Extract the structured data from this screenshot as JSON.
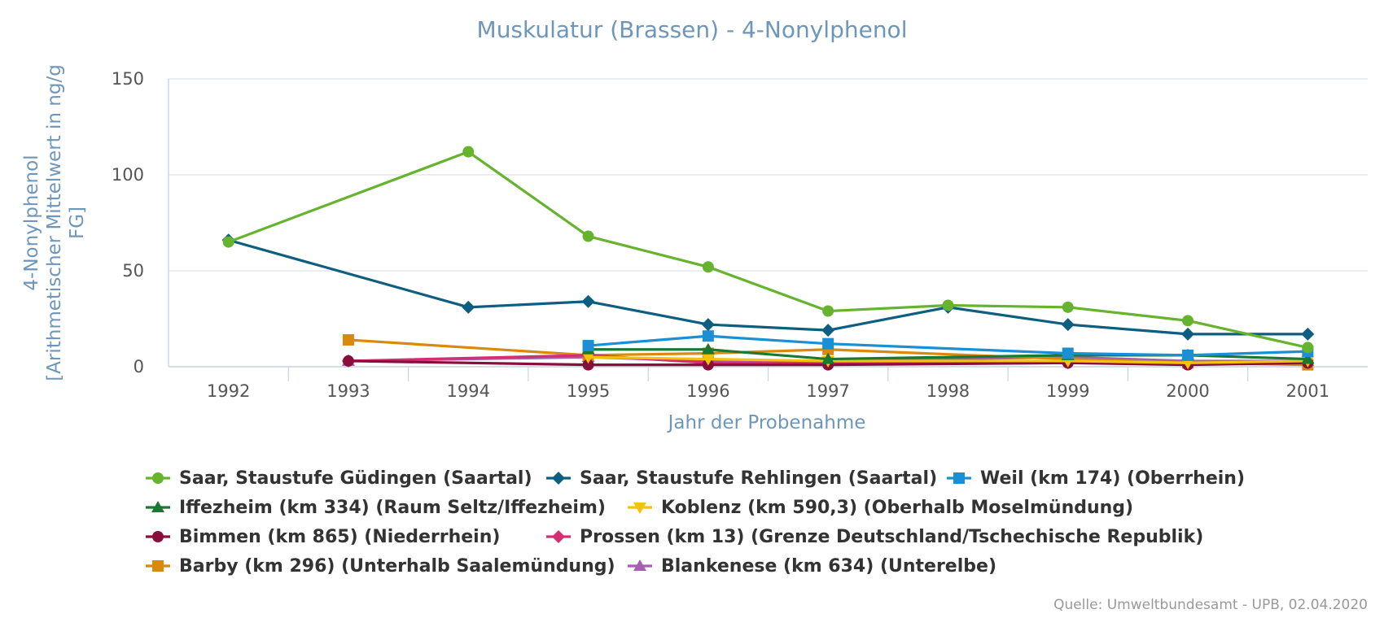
{
  "chart_data": {
    "type": "line",
    "title": "Muskulatur (Brassen) - 4-Nonylphenol",
    "xlabel": "Jahr der Probenahme",
    "ylabel_lines": [
      "4-Nonylphenol",
      "[Arithmetischer Mittelwert in ng/g",
      "FG]"
    ],
    "categories": [
      "1992",
      "1993",
      "1994",
      "1995",
      "1996",
      "1997",
      "1998",
      "1999",
      "2000",
      "2001"
    ],
    "y_ticks": [
      "0",
      "50",
      "100",
      "150"
    ],
    "ylim": [
      0,
      150
    ],
    "grid": true,
    "legend_position": "bottom",
    "series": [
      {
        "name": "Saar, Staustufe Güdingen (Saartal)",
        "color": "#66b32e",
        "marker": "circle",
        "values": [
          65,
          null,
          112,
          68,
          52,
          29,
          32,
          31,
          24,
          10
        ]
      },
      {
        "name": "Saar, Staustufe Rehlingen (Saartal)",
        "color": "#0d5e80",
        "marker": "diamond",
        "values": [
          66,
          null,
          31,
          34,
          22,
          19,
          31,
          22,
          17,
          17
        ]
      },
      {
        "name": "Weil (km 174) (Oberrhein)",
        "color": "#1a8fd6",
        "marker": "square",
        "values": [
          null,
          null,
          null,
          11,
          16,
          12,
          null,
          7,
          6,
          8
        ]
      },
      {
        "name": "Iffezheim (km 334) (Raum Seltz/Iffezheim)",
        "color": "#177a30",
        "marker": "triangle",
        "values": [
          null,
          null,
          null,
          9,
          9,
          4,
          null,
          6,
          6,
          4
        ]
      },
      {
        "name": "Koblenz (km 590,3) (Oberhalb Moselmündung)",
        "color": "#f5c20a",
        "marker": "triangle-down",
        "values": [
          null,
          null,
          null,
          5,
          4,
          3,
          null,
          3,
          2,
          3
        ]
      },
      {
        "name": "Bimmen (km 865) (Niederrhein)",
        "color": "#8a0e3c",
        "marker": "circle",
        "values": [
          null,
          3,
          null,
          1,
          1,
          1,
          null,
          2,
          1,
          2
        ]
      },
      {
        "name": "Prossen (km 13) (Grenze Deutschland/Tschechische Republik)",
        "color": "#d42e73",
        "marker": "diamond",
        "values": [
          null,
          3,
          null,
          6,
          2,
          2,
          null,
          2,
          2,
          2
        ]
      },
      {
        "name": "Barby (km 296) (Unterhalb Saalemündung)",
        "color": "#d98a0d",
        "marker": "square",
        "values": [
          null,
          14,
          null,
          6,
          7,
          9,
          null,
          4,
          2,
          1
        ]
      },
      {
        "name": "Blankenese (km 634) (Unterelbe)",
        "color": "#a65fb0",
        "marker": "triangle",
        "values": [
          null,
          3,
          null,
          5,
          3,
          3,
          null,
          5,
          3,
          3
        ]
      }
    ]
  },
  "legend_rows": [
    [
      0,
      1,
      2
    ],
    [
      3,
      4
    ],
    [
      5,
      6
    ],
    [
      7,
      8
    ]
  ],
  "source": "Quelle: Umweltbundesamt - UPB, 02.04.2020"
}
